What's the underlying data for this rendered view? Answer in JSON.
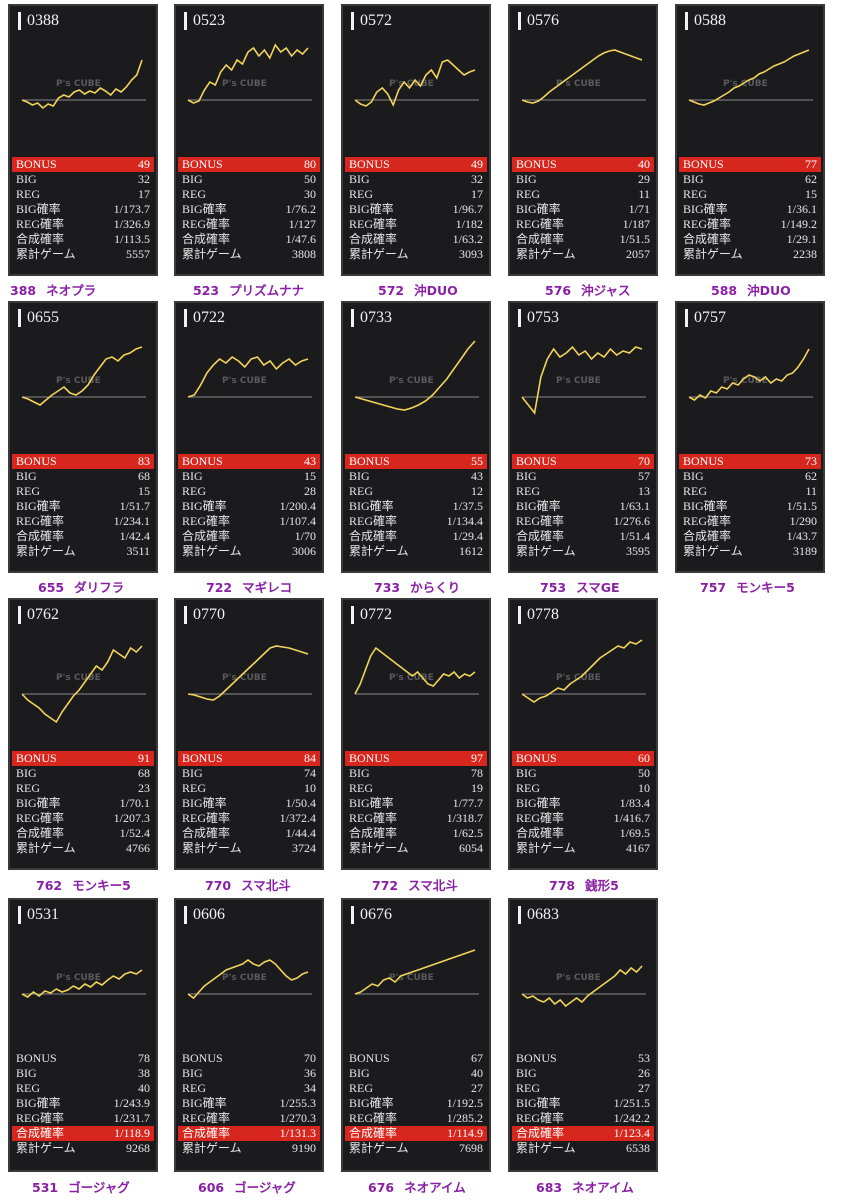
{
  "labels": [
    "BONUS",
    "BIG",
    "REG",
    "BIG確率",
    "REG確率",
    "合成確率",
    "累計ゲーム"
  ],
  "watermark": "P's CUBE",
  "colors": {
    "highlight": "#d7261e",
    "graph_line": "#f2d45c",
    "caption": "#8a1fa6",
    "card_bg": "#1b1b1d"
  },
  "machines": [
    {
      "num": "0388",
      "highlight": "bonus",
      "stats": [
        "49",
        "32",
        "17",
        "1/173.7",
        "1/326.9",
        "1/113.5",
        "5557"
      ],
      "caption_num": "388",
      "caption_name": "ネオプラ",
      "graph": [
        0,
        -2,
        -5,
        -3,
        -8,
        -4,
        -6,
        2,
        5,
        3,
        8,
        10,
        6,
        9,
        7,
        12,
        9,
        5,
        11,
        8,
        13,
        20,
        25,
        40
      ]
    },
    {
      "num": "0523",
      "highlight": "bonus",
      "stats": [
        "80",
        "50",
        "30",
        "1/76.2",
        "1/127",
        "1/47.6",
        "3808"
      ],
      "caption_num": "523",
      "caption_name": "プリズムナナ",
      "graph": [
        0,
        -3,
        -1,
        10,
        18,
        15,
        28,
        35,
        30,
        40,
        36,
        48,
        52,
        44,
        50,
        42,
        55,
        48,
        52,
        44,
        50,
        46,
        52
      ]
    },
    {
      "num": "0572",
      "highlight": "bonus",
      "stats": [
        "49",
        "32",
        "17",
        "1/96.7",
        "1/182",
        "1/63.2",
        "3093"
      ],
      "caption_num": "572",
      "caption_name": "沖DUO",
      "graph": [
        0,
        -4,
        -6,
        -2,
        8,
        12,
        6,
        -5,
        10,
        18,
        12,
        20,
        14,
        25,
        30,
        22,
        38,
        40,
        35,
        30,
        25,
        28,
        30
      ]
    },
    {
      "num": "0576",
      "highlight": "bonus",
      "stats": [
        "40",
        "29",
        "11",
        "1/71",
        "1/187",
        "1/51.5",
        "2057"
      ],
      "caption_num": "576",
      "caption_name": "沖ジャス",
      "graph": [
        0,
        -2,
        -3,
        -1,
        3,
        8,
        12,
        16,
        20,
        24,
        28,
        32,
        36,
        40,
        44,
        47,
        49,
        50,
        48,
        46,
        44,
        42,
        40
      ]
    },
    {
      "num": "0588",
      "highlight": "bonus",
      "stats": [
        "77",
        "62",
        "15",
        "1/36.1",
        "1/149.2",
        "1/29.1",
        "2238"
      ],
      "caption_num": "588",
      "caption_name": "沖DUO",
      "graph": [
        0,
        -2,
        -4,
        -5,
        -3,
        -1,
        2,
        5,
        8,
        12,
        14,
        17,
        20,
        22,
        26,
        28,
        31,
        34,
        36,
        38,
        41,
        44,
        46,
        48,
        50
      ]
    },
    {
      "num": "0655",
      "highlight": "bonus",
      "stats": [
        "83",
        "68",
        "15",
        "1/51.7",
        "1/234.1",
        "1/42.4",
        "3511"
      ],
      "caption_num": "655",
      "caption_name": "ダリフラ",
      "graph": [
        0,
        -2,
        -5,
        -8,
        -3,
        2,
        6,
        10,
        4,
        2,
        6,
        12,
        22,
        30,
        38,
        40,
        36,
        42,
        44,
        48,
        50
      ]
    },
    {
      "num": "0722",
      "highlight": "bonus",
      "stats": [
        "43",
        "15",
        "28",
        "1/200.4",
        "1/107.4",
        "1/70",
        "3006"
      ],
      "caption_num": "722",
      "caption_name": "マギレコ",
      "graph": [
        0,
        2,
        12,
        24,
        32,
        38,
        34,
        40,
        36,
        30,
        38,
        40,
        32,
        36,
        28,
        34,
        38,
        32,
        36,
        38
      ]
    },
    {
      "num": "0733",
      "highlight": "bonus",
      "stats": [
        "55",
        "43",
        "12",
        "1/37.5",
        "1/134.4",
        "1/29.4",
        "1612"
      ],
      "caption_num": "733",
      "caption_name": "からくり",
      "graph": [
        0,
        -2,
        -4,
        -6,
        -8,
        -10,
        -12,
        -13,
        -11,
        -8,
        -4,
        2,
        10,
        18,
        28,
        38,
        48,
        56
      ]
    },
    {
      "num": "0753",
      "highlight": "bonus",
      "stats": [
        "70",
        "57",
        "13",
        "1/63.1",
        "1/276.6",
        "1/51.4",
        "3595"
      ],
      "caption_num": "753",
      "caption_name": "スマGE",
      "graph": [
        0,
        -8,
        -16,
        20,
        38,
        48,
        40,
        44,
        50,
        42,
        46,
        38,
        44,
        40,
        48,
        42,
        46,
        44,
        50,
        48
      ]
    },
    {
      "num": "0757",
      "highlight": "bonus",
      "stats": [
        "73",
        "62",
        "11",
        "1/51.5",
        "1/290",
        "1/43.7",
        "3189"
      ],
      "caption_num": "757",
      "caption_name": "モンキー5",
      "graph": [
        0,
        -3,
        2,
        -1,
        6,
        4,
        10,
        8,
        14,
        12,
        18,
        22,
        20,
        16,
        20,
        14,
        18,
        16,
        22,
        24,
        30,
        38,
        48
      ]
    },
    {
      "num": "0762",
      "highlight": "bonus",
      "stats": [
        "91",
        "68",
        "23",
        "1/70.1",
        "1/207.3",
        "1/52.4",
        "4766"
      ],
      "caption_num": "762",
      "caption_name": "モンキー5",
      "graph": [
        0,
        -6,
        -10,
        -14,
        -20,
        -24,
        -28,
        -18,
        -10,
        -2,
        4,
        12,
        20,
        28,
        24,
        32,
        44,
        40,
        36,
        46,
        42,
        48
      ]
    },
    {
      "num": "0770",
      "highlight": "bonus",
      "stats": [
        "84",
        "74",
        "10",
        "1/50.4",
        "1/372.4",
        "1/44.4",
        "3724"
      ],
      "caption_num": "770",
      "caption_name": "スマ北斗",
      "graph": [
        0,
        -1,
        -3,
        -5,
        -6,
        -2,
        4,
        10,
        16,
        22,
        28,
        34,
        40,
        46,
        48,
        47,
        46,
        44,
        42,
        40
      ]
    },
    {
      "num": "0772",
      "highlight": "bonus",
      "stats": [
        "97",
        "78",
        "19",
        "1/77.7",
        "1/318.7",
        "1/62.5",
        "6054"
      ],
      "caption_num": "772",
      "caption_name": "スマ北斗",
      "graph": [
        0,
        10,
        24,
        38,
        46,
        42,
        38,
        34,
        30,
        26,
        22,
        18,
        22,
        16,
        10,
        8,
        14,
        20,
        18,
        22,
        16,
        20,
        18,
        22
      ]
    },
    {
      "num": "0778",
      "highlight": "bonus",
      "stats": [
        "60",
        "50",
        "10",
        "1/83.4",
        "1/416.7",
        "1/69.5",
        "4167"
      ],
      "caption_num": "778",
      "caption_name": "銭形5",
      "graph": [
        0,
        -4,
        -8,
        -4,
        -2,
        2,
        6,
        4,
        10,
        14,
        18,
        24,
        30,
        36,
        40,
        44,
        48,
        46,
        52,
        50,
        54
      ]
    },
    {
      "num": "0531",
      "highlight": "combined",
      "stats": [
        "78",
        "38",
        "40",
        "1/243.9",
        "1/231.7",
        "1/118.9",
        "9268"
      ],
      "caption_num": "531",
      "caption_name": "ゴージャグ",
      "graph": [
        0,
        -3,
        2,
        -2,
        3,
        1,
        5,
        2,
        4,
        8,
        5,
        10,
        7,
        12,
        9,
        14,
        18,
        15,
        20,
        22,
        20,
        24
      ]
    },
    {
      "num": "0606",
      "highlight": "combined",
      "stats": [
        "70",
        "36",
        "34",
        "1/255.3",
        "1/270.3",
        "1/131.3",
        "9190"
      ],
      "caption_num": "606",
      "caption_name": "ゴージャグ",
      "graph": [
        0,
        -4,
        2,
        8,
        12,
        16,
        20,
        24,
        26,
        28,
        30,
        34,
        30,
        28,
        32,
        34,
        30,
        24,
        18,
        14,
        16,
        20,
        22
      ]
    },
    {
      "num": "0676",
      "highlight": "combined",
      "stats": [
        "67",
        "40",
        "27",
        "1/192.5",
        "1/285.2",
        "1/114.9",
        "7698"
      ],
      "caption_num": "676",
      "caption_name": "ネオアイム",
      "graph": [
        0,
        2,
        6,
        10,
        8,
        14,
        16,
        12,
        18,
        20,
        22,
        24,
        26,
        28,
        30,
        32,
        34,
        36,
        38,
        40,
        42,
        44
      ]
    },
    {
      "num": "0683",
      "highlight": "combined",
      "stats": [
        "53",
        "26",
        "27",
        "1/251.5",
        "1/242.2",
        "1/123.4",
        "6538"
      ],
      "caption_num": "683",
      "caption_name": "ネオアイム",
      "graph": [
        0,
        -4,
        -2,
        -6,
        -8,
        -4,
        -10,
        -6,
        -12,
        -8,
        -4,
        -8,
        -2,
        2,
        6,
        10,
        14,
        18,
        24,
        20,
        26,
        22,
        28
      ]
    }
  ]
}
